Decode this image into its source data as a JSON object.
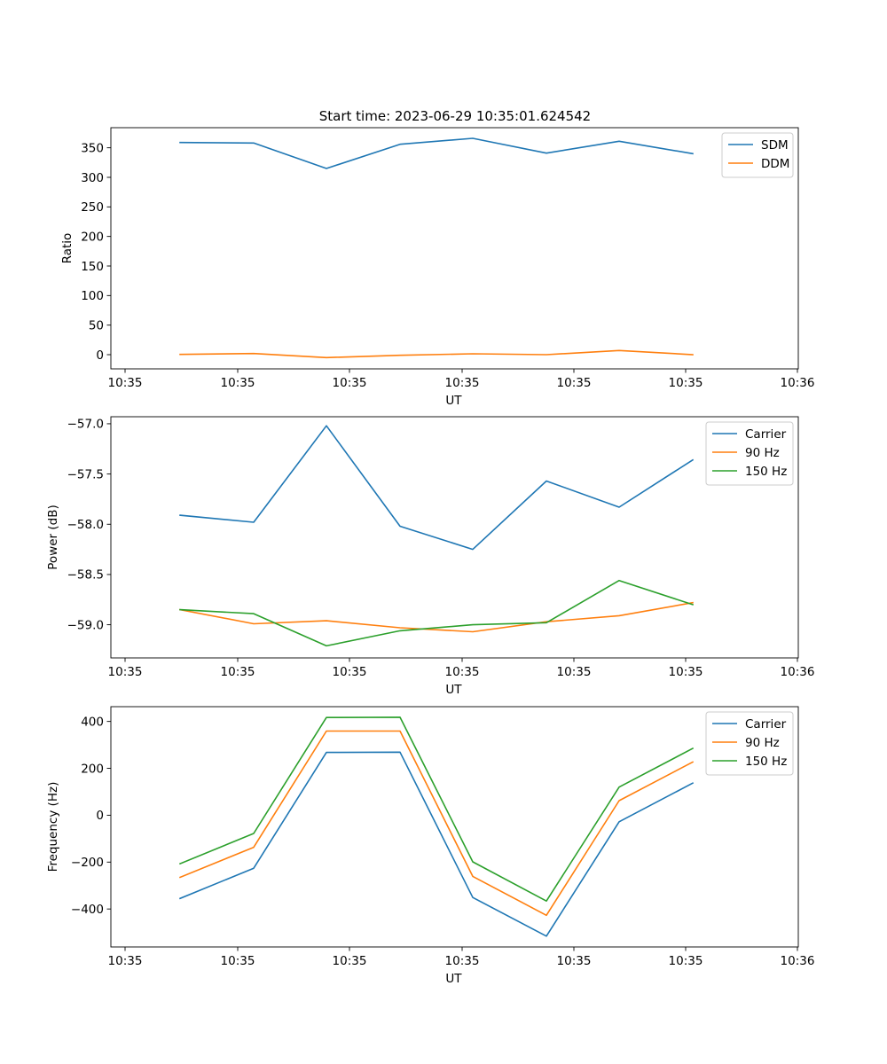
{
  "figure": {
    "title": "Start time: 2023-06-29 10:35:01.624542",
    "background": "#ffffff"
  },
  "chart_data": [
    {
      "type": "line",
      "title": "Start time: 2023-06-29 10:35:01.624542",
      "xlabel": "UT",
      "ylabel": "Ratio",
      "x_tick_labels": [
        "10:35",
        "10:35",
        "10:35",
        "10:35",
        "10:35",
        "10:35",
        "10:36"
      ],
      "y_ticks": [
        0,
        50,
        100,
        150,
        200,
        250,
        300,
        350
      ],
      "ylim": [
        -24,
        384
      ],
      "grid": false,
      "legend_position": "upper right",
      "series": [
        {
          "name": "SDM",
          "color": "#1f77b4",
          "values": [
            359,
            358,
            315,
            356,
            366,
            341,
            361,
            340
          ]
        },
        {
          "name": "DDM",
          "color": "#ff7f0e",
          "values": [
            0.5,
            2,
            -5,
            -1,
            1.5,
            0,
            7,
            0
          ]
        }
      ]
    },
    {
      "type": "line",
      "title": "",
      "xlabel": "UT",
      "ylabel": "Power (dB)",
      "x_tick_labels": [
        "10:35",
        "10:35",
        "10:35",
        "10:35",
        "10:35",
        "10:35",
        "10:36"
      ],
      "y_ticks": [
        -57.0,
        -57.5,
        -58.0,
        -58.5,
        -59.0
      ],
      "y_tick_labels": [
        "−57.0",
        "−57.5",
        "−58.0",
        "−58.5",
        "−59.0"
      ],
      "ylim": [
        -59.33,
        -56.93
      ],
      "grid": false,
      "legend_position": "upper right",
      "series": [
        {
          "name": "Carrier",
          "color": "#1f77b4",
          "values": [
            -57.91,
            -57.98,
            -57.02,
            -58.02,
            -58.25,
            -57.57,
            -57.83,
            -57.36
          ]
        },
        {
          "name": "90 Hz",
          "color": "#ff7f0e",
          "values": [
            -58.85,
            -58.99,
            -58.96,
            -59.03,
            -59.07,
            -58.97,
            -58.91,
            -58.78
          ]
        },
        {
          "name": "150 Hz",
          "color": "#2ca02c",
          "values": [
            -58.85,
            -58.89,
            -59.21,
            -59.06,
            -59.0,
            -58.98,
            -58.56,
            -58.8
          ]
        }
      ]
    },
    {
      "type": "line",
      "title": "",
      "xlabel": "UT",
      "ylabel": "Frequency (Hz)",
      "x_tick_labels": [
        "10:35",
        "10:35",
        "10:35",
        "10:35",
        "10:35",
        "10:35",
        "10:36"
      ],
      "y_ticks": [
        400,
        200,
        0,
        -200,
        -400
      ],
      "y_tick_labels": [
        "400",
        "200",
        "0",
        "−200",
        "−400"
      ],
      "ylim": [
        -562,
        463
      ],
      "grid": false,
      "legend_position": "upper right",
      "series": [
        {
          "name": "Carrier",
          "color": "#1f77b4",
          "values": [
            -355,
            -226,
            268,
            269,
            -351,
            -516,
            -28,
            137
          ]
        },
        {
          "name": "90 Hz",
          "color": "#ff7f0e",
          "values": [
            -265,
            -137,
            359,
            359,
            -261,
            -427,
            62,
            227
          ]
        },
        {
          "name": "150 Hz",
          "color": "#2ca02c",
          "values": [
            -207,
            -78,
            417,
            418,
            -199,
            -366,
            120,
            285
          ]
        }
      ]
    }
  ]
}
